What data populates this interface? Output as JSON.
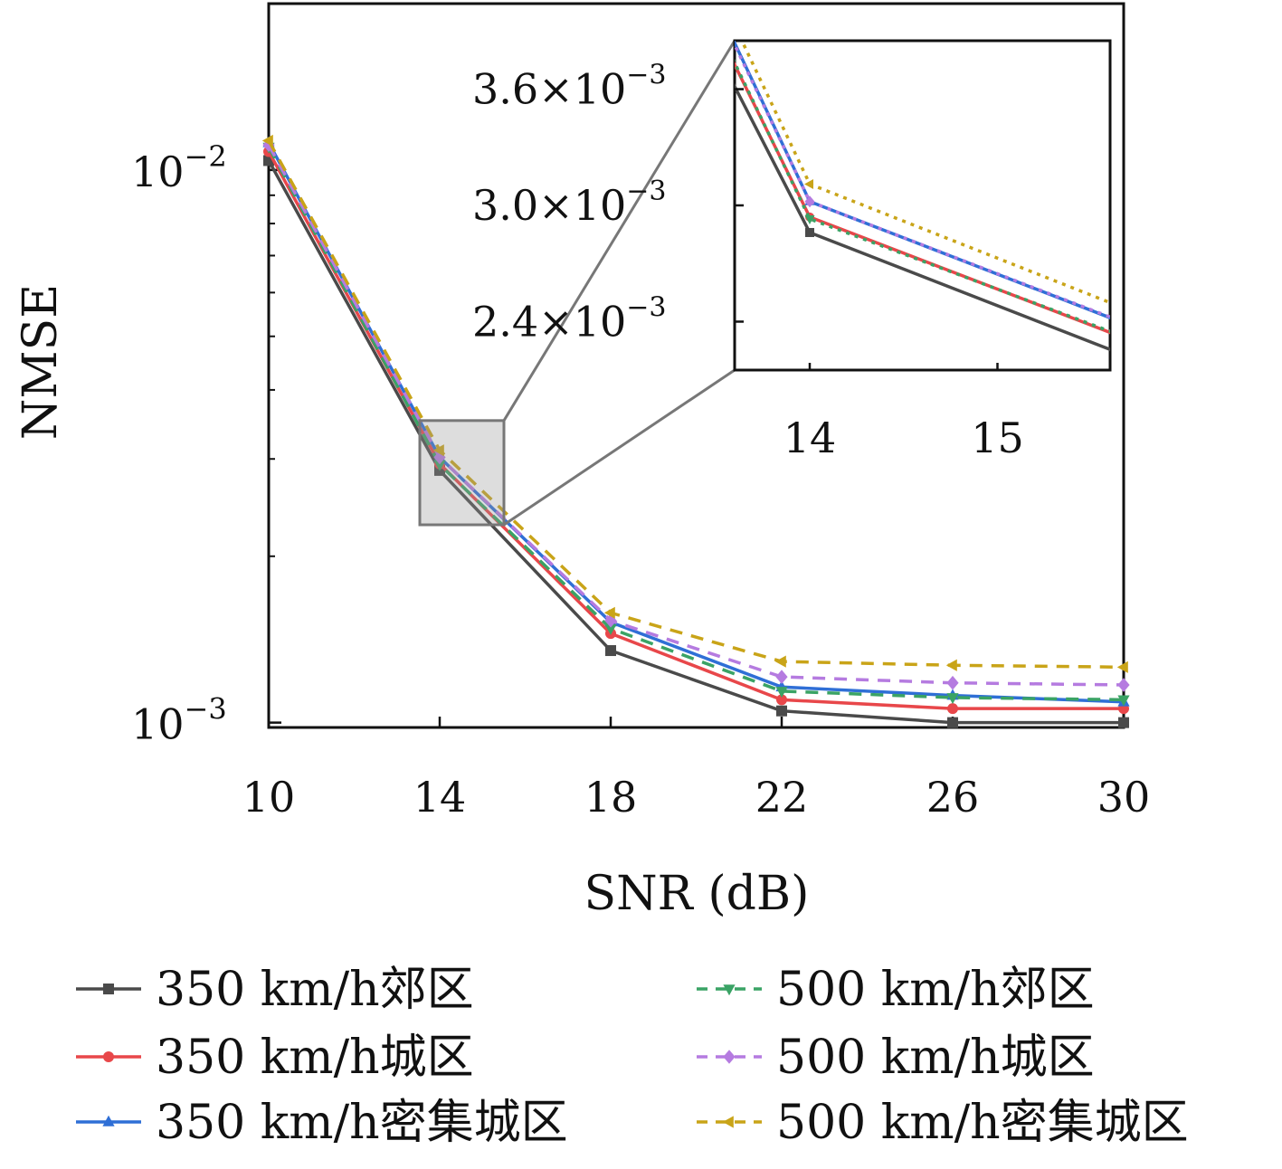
{
  "chart_data": {
    "type": "line",
    "xlabel": "SNR (dB)",
    "ylabel": "NMSE",
    "x": [
      10,
      14,
      18,
      22,
      26,
      30
    ],
    "x_ticks": [
      "10",
      "14",
      "18",
      "22",
      "26",
      "30"
    ],
    "xlim": [
      10,
      30
    ],
    "yscale": "log",
    "ylim": [
      0.00098,
      0.02
    ],
    "y_ticks": [
      {
        "base": "10",
        "exp": "−2",
        "value": 0.01
      },
      {
        "base": "10",
        "exp": "−3",
        "value": 0.001
      }
    ],
    "grid": false,
    "legend_placement": "bottom",
    "series": [
      {
        "name": "350 km/h郊区",
        "color": "#4a4a4a",
        "dash": "solid",
        "marker": "square",
        "values": [
          0.0104,
          0.00286,
          0.00135,
          0.00105,
          0.001,
          0.001
        ]
      },
      {
        "name": "350 km/h城区",
        "color": "#e8474a",
        "dash": "solid",
        "marker": "circle",
        "values": [
          0.0108,
          0.00294,
          0.00145,
          0.0011,
          0.00106,
          0.00106
        ]
      },
      {
        "name": "350 km/h密集城区",
        "color": "#2f6fd6",
        "dash": "solid",
        "marker": "triangle-up",
        "values": [
          0.0112,
          0.00302,
          0.00152,
          0.00116,
          0.00112,
          0.00109
        ]
      },
      {
        "name": "500 km/h郊区",
        "color": "#3aa365",
        "dash": "dashed",
        "marker": "triangle-down",
        "values": [
          0.011,
          0.00293,
          0.00148,
          0.00114,
          0.00111,
          0.0011
        ]
      },
      {
        "name": "500 km/h城区",
        "color": "#b57be0",
        "dash": "dashed",
        "marker": "diamond",
        "values": [
          0.0111,
          0.00302,
          0.00153,
          0.00121,
          0.00118,
          0.00117
        ]
      },
      {
        "name": "500 km/h密集城区",
        "color": "#c9a418",
        "dash": "dashed",
        "marker": "triangle-left",
        "values": [
          0.0113,
          0.00311,
          0.00158,
          0.00129,
          0.00127,
          0.00126
        ]
      }
    ],
    "inset": {
      "xlim": [
        13.6,
        15.6
      ],
      "ylim": [
        0.00215,
        0.00385
      ],
      "x_ticks": [
        "14",
        "15"
      ],
      "x_tick_values": [
        14,
        15
      ],
      "y_ticks": [
        {
          "label": "3.6×10",
          "exp": "−3",
          "value": 0.0036
        },
        {
          "label": "3.0×10",
          "exp": "−3",
          "value": 0.003
        },
        {
          "label": "2.4×10",
          "exp": "−3",
          "value": 0.0024
        }
      ],
      "zoom_region": {
        "x": [
          13.0,
          15.5
        ],
        "y": [
          0.00228,
          0.00352
        ]
      }
    }
  }
}
